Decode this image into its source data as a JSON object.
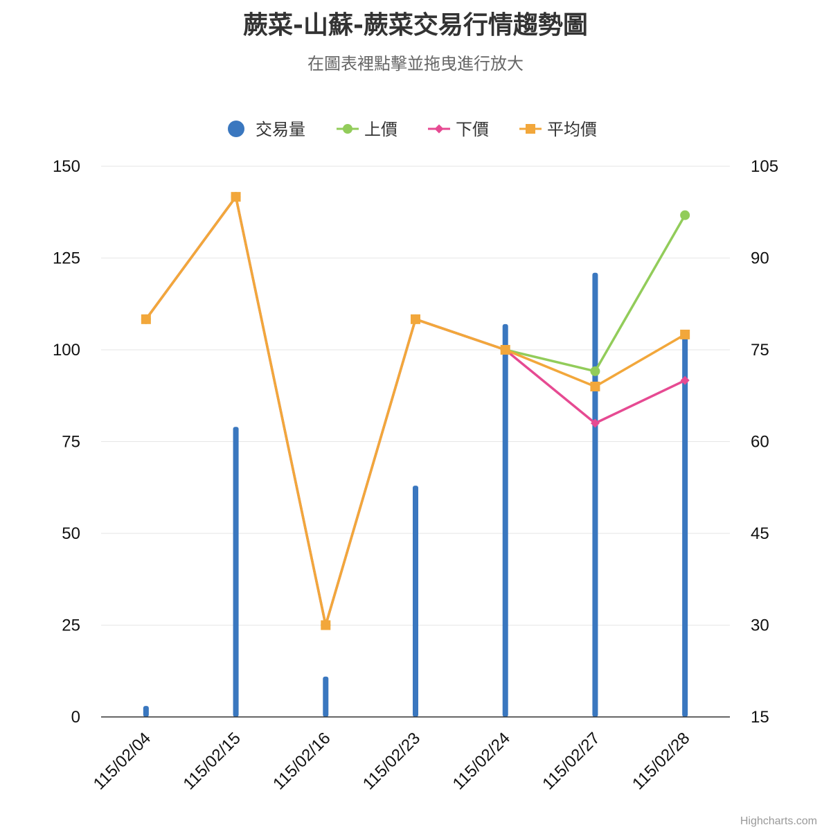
{
  "chart": {
    "title": "蕨菜-山蘇-蕨菜交易行情趨勢圖",
    "subtitle": "在圖表裡點擊並拖曳進行放大",
    "credits": "Highcharts.com",
    "legend": {
      "position": "top-center",
      "items": [
        {
          "label": "交易量",
          "color": "#3a77bf",
          "marker": "circle"
        },
        {
          "label": "上價",
          "color": "#92cc5a",
          "marker": "circle"
        },
        {
          "label": "下價",
          "color": "#e64a92",
          "marker": "diamond"
        },
        {
          "label": "平均價",
          "color": "#f2a73b",
          "marker": "square"
        }
      ]
    }
  },
  "chart_data": {
    "type": "bar+line",
    "categories": [
      "115/02/04",
      "115/02/15",
      "115/02/16",
      "115/02/23",
      "115/02/24",
      "115/02/27",
      "115/02/28"
    ],
    "left_axis": {
      "ylim": [
        0,
        150
      ],
      "ticks": [
        "0",
        "25",
        "50",
        "75",
        "100",
        "125",
        "150"
      ]
    },
    "right_axis": {
      "ylim": [
        15,
        105
      ],
      "ticks": [
        "15",
        "30",
        "45",
        "60",
        "75",
        "90",
        "105"
      ]
    },
    "grid": true,
    "series": [
      {
        "name": "交易量",
        "type": "bar",
        "axis": "left",
        "color": "#3a77bf",
        "values": [
          3,
          79,
          11,
          63,
          107,
          121,
          104
        ]
      },
      {
        "name": "上價",
        "type": "line",
        "axis": "right",
        "color": "#92cc5a",
        "marker": "circle",
        "values": [
          80,
          100,
          30,
          80,
          75,
          71.5,
          97
        ]
      },
      {
        "name": "下價",
        "type": "line",
        "axis": "right",
        "color": "#e64a92",
        "marker": "diamond",
        "values": [
          80,
          100,
          30,
          80,
          75,
          63,
          70
        ]
      },
      {
        "name": "平均價",
        "type": "line",
        "axis": "right",
        "color": "#f2a73b",
        "marker": "square",
        "values": [
          80,
          100,
          30,
          80,
          75,
          69,
          77.5
        ]
      }
    ]
  }
}
